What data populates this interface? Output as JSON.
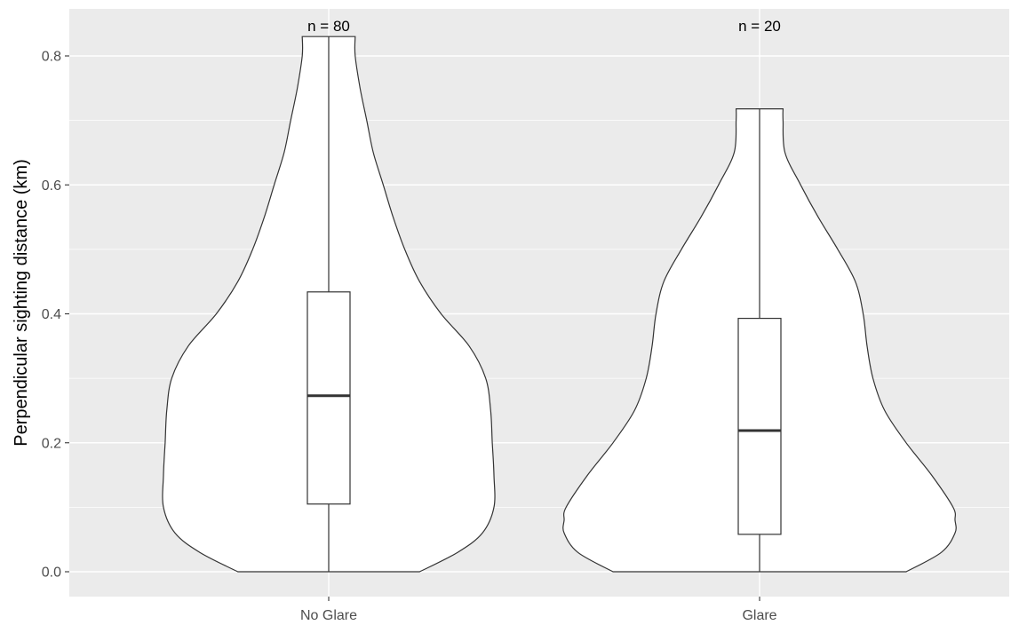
{
  "chart_data": {
    "type": "violin",
    "title": "",
    "xlabel": "",
    "ylabel": "Perpendicular sighting distance (km)",
    "ylim": [
      -0.04,
      0.855
    ],
    "y_ticks": [
      0.0,
      0.2,
      0.4,
      0.6,
      0.8
    ],
    "y_tick_labels": [
      "0.0",
      "0.2",
      "0.4",
      "0.6",
      "0.8"
    ],
    "grid": true,
    "categories": [
      "No Glare",
      "Glare"
    ],
    "groups": [
      {
        "name": "No Glare",
        "n_label": "n = 80",
        "min": 0.0,
        "q1": 0.105,
        "median": 0.273,
        "q3": 0.434,
        "max": 0.83,
        "density": [
          [
            0.0,
            0.55
          ],
          [
            0.03,
            0.78
          ],
          [
            0.06,
            0.93
          ],
          [
            0.1,
            1.0
          ],
          [
            0.15,
            1.0
          ],
          [
            0.2,
            0.99
          ],
          [
            0.25,
            0.98
          ],
          [
            0.3,
            0.95
          ],
          [
            0.35,
            0.85
          ],
          [
            0.4,
            0.68
          ],
          [
            0.45,
            0.55
          ],
          [
            0.5,
            0.46
          ],
          [
            0.55,
            0.39
          ],
          [
            0.6,
            0.33
          ],
          [
            0.65,
            0.27
          ],
          [
            0.7,
            0.23
          ],
          [
            0.75,
            0.19
          ],
          [
            0.8,
            0.16
          ],
          [
            0.83,
            0.16
          ]
        ]
      },
      {
        "name": "Glare",
        "n_label": "n = 20",
        "min": 0.0,
        "q1": 0.058,
        "median": 0.219,
        "q3": 0.393,
        "max": 0.718,
        "density": [
          [
            0.0,
            0.75
          ],
          [
            0.03,
            0.93
          ],
          [
            0.06,
            1.0
          ],
          [
            0.08,
            1.0
          ],
          [
            0.1,
            0.99
          ],
          [
            0.15,
            0.88
          ],
          [
            0.2,
            0.75
          ],
          [
            0.25,
            0.64
          ],
          [
            0.3,
            0.58
          ],
          [
            0.35,
            0.55
          ],
          [
            0.4,
            0.53
          ],
          [
            0.45,
            0.49
          ],
          [
            0.5,
            0.4
          ],
          [
            0.55,
            0.3
          ],
          [
            0.6,
            0.21
          ],
          [
            0.65,
            0.13
          ],
          [
            0.7,
            0.12
          ],
          [
            0.718,
            0.12
          ]
        ]
      }
    ],
    "colors": {
      "panel_bg": "#ebebeb",
      "grid": "#ffffff",
      "violin_fill": "#ffffff",
      "outline": "#333333",
      "median": "#333333"
    }
  }
}
